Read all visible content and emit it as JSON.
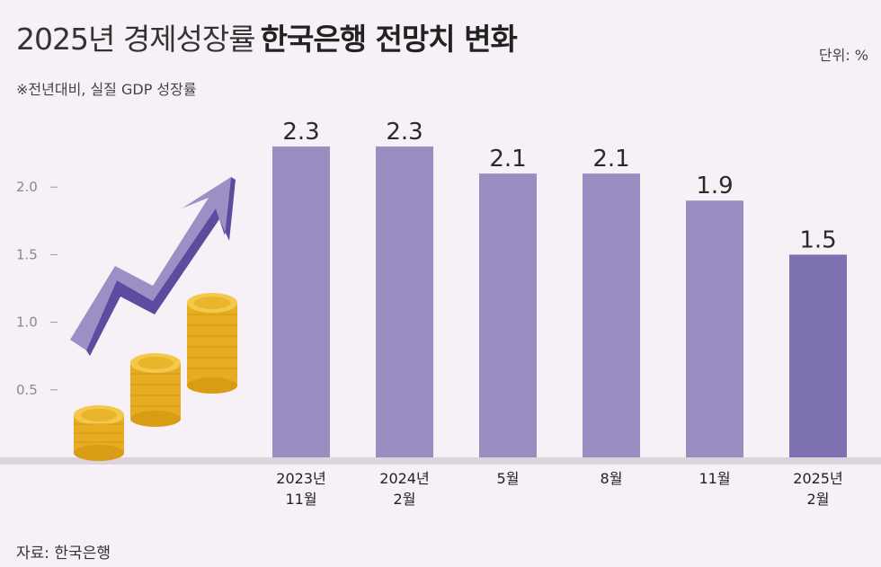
{
  "header": {
    "title_light": "2025년 경제성장률",
    "title_bold": "한국은행 전망치 변화",
    "unit": "단위: %",
    "subtitle": "※전년대비, 실질 GDP 성장률"
  },
  "footer": {
    "source": "자료: 한국은행"
  },
  "colors": {
    "bar": "#9a8dc1",
    "bar_highlight": "#7d71b1",
    "background": "#f7f0f6",
    "arrow": "#6a55a6",
    "coin": "#e9b52d"
  },
  "chart_data": {
    "type": "bar",
    "title": "2025년 경제성장률 한국은행 전망치 변화",
    "categories": [
      [
        "2023년",
        "11월"
      ],
      [
        "2024년",
        "2월"
      ],
      [
        "5월"
      ],
      [
        "8월"
      ],
      [
        "11월"
      ],
      [
        "2025년",
        "2월"
      ]
    ],
    "values": [
      2.3,
      2.3,
      2.1,
      2.1,
      1.9,
      1.5
    ],
    "data_labels": [
      "2.3",
      "2.3",
      "2.1",
      "2.1",
      "1.9",
      "1.5"
    ],
    "highlight_index": 5,
    "y_ticks": [
      {
        "value": 0.5,
        "label": "0.5"
      },
      {
        "value": 1.0,
        "label": "1.0"
      },
      {
        "value": 1.5,
        "label": "1.5"
      },
      {
        "value": 2.0,
        "label": "2.0"
      }
    ],
    "ylim": [
      0,
      2.3
    ],
    "xlabel": "",
    "ylabel": "",
    "grid": false,
    "legend": "none"
  }
}
